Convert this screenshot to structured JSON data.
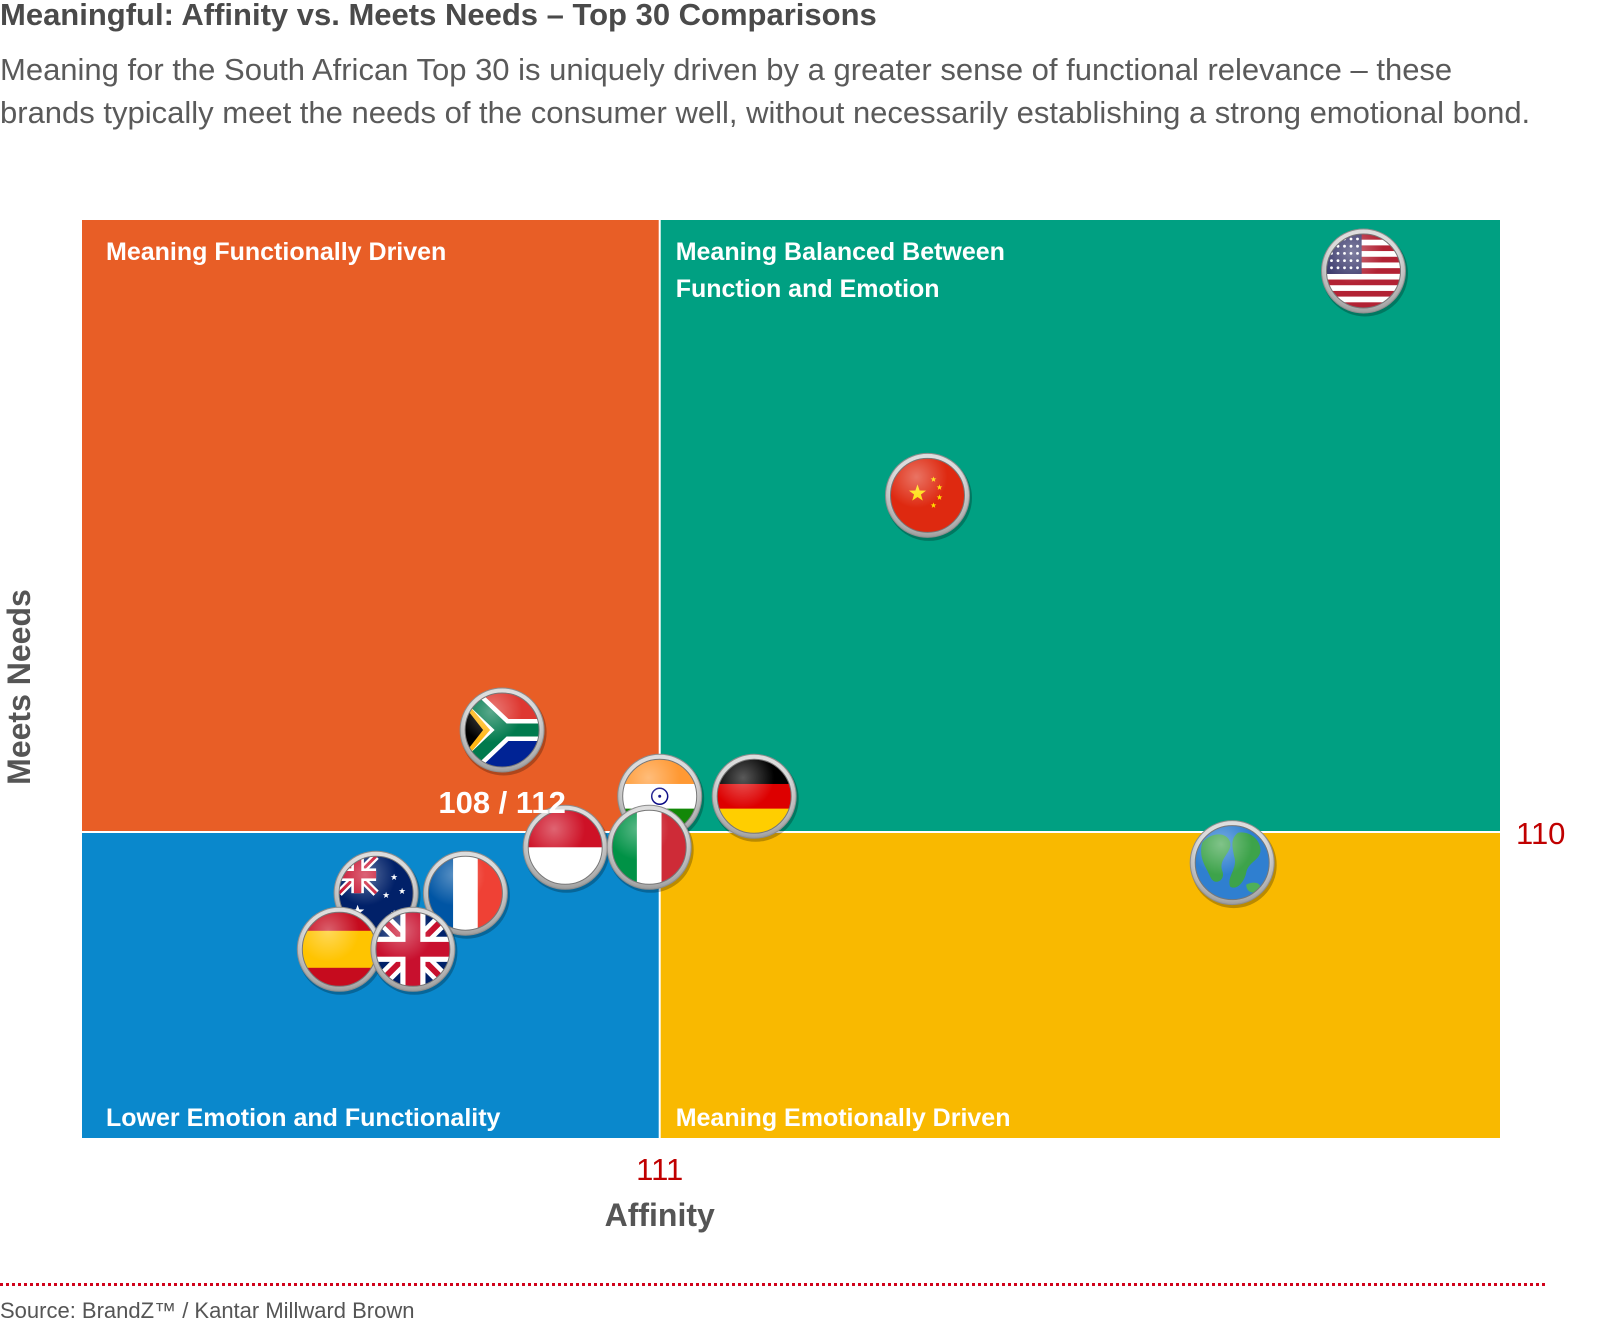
{
  "header": {
    "title": "Meaningful: Affinity vs. Meets Needs – Top 30 Comparisons",
    "subtitle": "Meaning for the South African Top 30 is uniquely driven by a greater sense of functional relevance – these brands typically meet the needs of the consumer well, without necessarily establishing a strong emotional bond."
  },
  "chart_data": {
    "type": "scatter",
    "xlabel": "Affinity",
    "ylabel": "Meets Needs",
    "x_reference": {
      "value": 111,
      "label": "111"
    },
    "y_reference": {
      "value": 110,
      "label": "110"
    },
    "xlim": [
      100,
      127
    ],
    "ylim": [
      104,
      122
    ],
    "quadrants": [
      {
        "id": "top-left",
        "label_lines": [
          "Meaning Functionally Driven"
        ],
        "color": "#e85e26"
      },
      {
        "id": "top-right",
        "label_lines": [
          "Meaning Balanced Between",
          "Function and Emotion"
        ],
        "color": "#00a082"
      },
      {
        "id": "bottom-left",
        "label_lines": [
          "Lower Emotion and Functionality"
        ],
        "color": "#0a88cc"
      },
      {
        "id": "bottom-right",
        "label_lines": [
          "Meaning Emotionally Driven"
        ],
        "color": "#f9b900"
      }
    ],
    "points": [
      {
        "name": "United States",
        "flag": "us",
        "x": 124.4,
        "y": 121.0
      },
      {
        "name": "China",
        "flag": "cn",
        "x": 116.1,
        "y": 116.6
      },
      {
        "name": "South Africa",
        "flag": "za",
        "x": 108.0,
        "y": 112.0,
        "label": "108 / 112"
      },
      {
        "name": "India",
        "flag": "in",
        "x": 111.0,
        "y": 110.7
      },
      {
        "name": "Germany",
        "flag": "de",
        "x": 112.8,
        "y": 110.7
      },
      {
        "name": "Indonesia",
        "flag": "id",
        "x": 109.2,
        "y": 109.7
      },
      {
        "name": "Italy",
        "flag": "it",
        "x": 110.8,
        "y": 109.7
      },
      {
        "name": "Global",
        "flag": "globe",
        "x": 121.9,
        "y": 109.4
      },
      {
        "name": "Australia",
        "flag": "au",
        "x": 105.6,
        "y": 108.8
      },
      {
        "name": "France",
        "flag": "fr",
        "x": 107.3,
        "y": 108.8
      },
      {
        "name": "Spain",
        "flag": "es",
        "x": 104.9,
        "y": 107.7
      },
      {
        "name": "United Kingdom",
        "flag": "gb",
        "x": 106.3,
        "y": 107.7
      }
    ]
  },
  "footer": {
    "source": "Source: BrandZ™ / Kantar Millward Brown"
  }
}
